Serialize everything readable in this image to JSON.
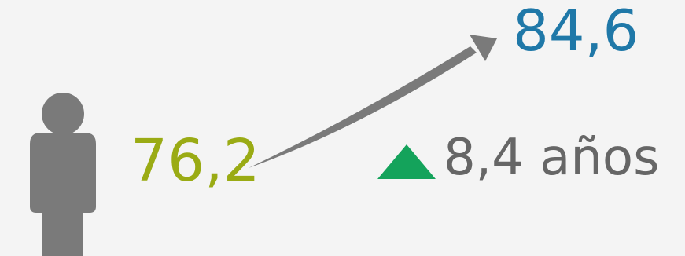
{
  "metric": {
    "start_value": "76,2",
    "end_value": "84,6",
    "change_value": "8,4 años"
  },
  "icons": {
    "person": "person-icon",
    "trend": "curved-arrow-icon",
    "change": "triangle-up-icon"
  },
  "colors": {
    "background": "#f4f4f4",
    "start": "#9aab14",
    "end": "#1f78a8",
    "neutral": "#7a7a7a",
    "positive": "#14a35b",
    "change_text": "#666666"
  }
}
